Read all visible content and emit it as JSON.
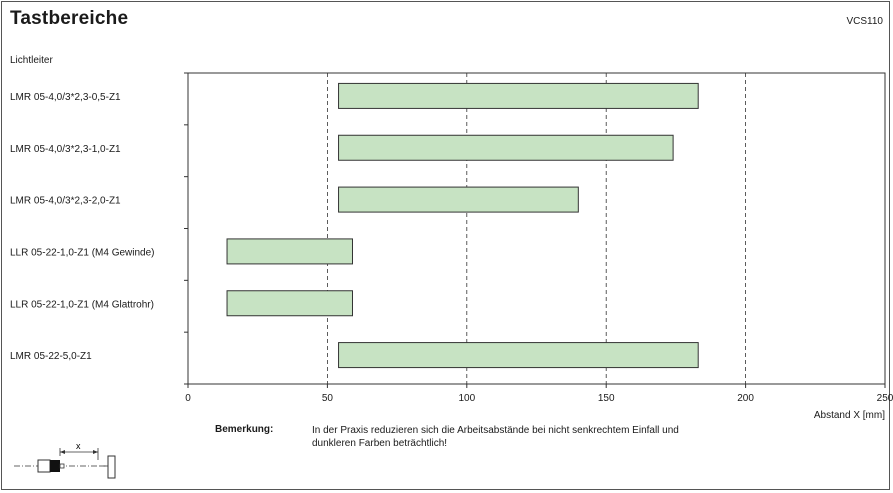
{
  "header": {
    "title": "Tastbereiche",
    "code": "VCS110"
  },
  "group_label": "Lichtleiter",
  "chart_data": {
    "type": "bar",
    "orientation": "horizontal",
    "title": "Tastbereiche",
    "ylabel": "Lichtleiter",
    "xlabel": "Abstand X [mm]",
    "xlim": [
      0,
      250
    ],
    "xticks": [
      0,
      50,
      100,
      150,
      200,
      250
    ],
    "grid": "vertical dashed at 50, 100, 150, 200",
    "color": "#c7e3c3",
    "edge_color": "#333333",
    "categories": [
      "LMR 05-4,0/3*2,3-0,5-Z1",
      "LMR 05-4,0/3*2,3-1,0-Z1",
      "LMR 05-4,0/3*2,3-2,0-Z1",
      "LLR 05-22-1,0-Z1 (M4 Gewinde)",
      "LLR 05-22-1,0-Z1 (M4 Glattrohr)",
      "LMR 05-22-5,0-Z1"
    ],
    "ranges": [
      [
        54,
        183
      ],
      [
        54,
        174
      ],
      [
        54,
        140
      ],
      [
        14,
        59
      ],
      [
        14,
        59
      ],
      [
        54,
        183
      ]
    ]
  },
  "remark": {
    "label": "Bemerkung:",
    "lines": [
      "In der Praxis reduzieren sich die Arbeitsabstände bei nicht senkrechtem Einfall und",
      "dunkleren Farben beträchtlich!"
    ]
  },
  "diagram": {
    "label": "x"
  }
}
